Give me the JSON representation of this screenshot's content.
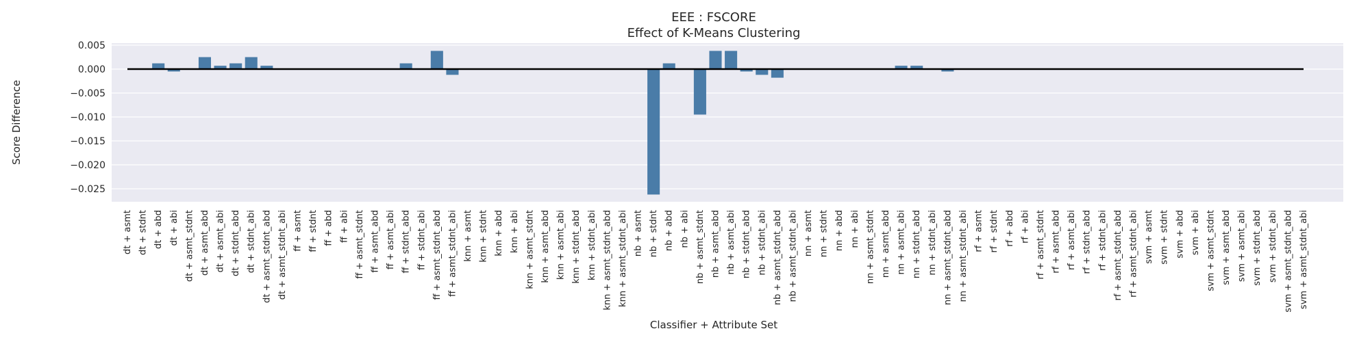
{
  "chart_data": {
    "type": "bar",
    "title": "EEE : FSCORE",
    "subtitle": "Effect of K-Means Clustering",
    "xlabel": "Classifier + Attribute Set",
    "ylabel": "Score Difference",
    "ylim": [
      -0.028,
      0.0055
    ],
    "yticks": [
      0.005,
      0.0,
      -0.005,
      -0.01,
      -0.015,
      -0.02,
      -0.025
    ],
    "ytick_labels": [
      "0.005",
      "0.000",
      "−0.005",
      "−0.010",
      "−0.015",
      "−0.020",
      "−0.025"
    ],
    "grid": true,
    "baseline": 0,
    "colors": {
      "bar": "#4a7ca8",
      "background": "#eaeaf2",
      "grid": "#ffffff",
      "baseline": "#000000"
    },
    "categories": [
      "dt + asmt",
      "dt + stdnt",
      "dt + abd",
      "dt + abi",
      "dt + asmt_stdnt",
      "dt + asmt_abd",
      "dt + asmt_abi",
      "dt + stdnt_abd",
      "dt + stdnt_abi",
      "dt + asmt_stdnt_abd",
      "dt + asmt_stdnt_abi",
      "ff + asmt",
      "ff + stdnt",
      "ff + abd",
      "ff + abi",
      "ff + asmt_stdnt",
      "ff + asmt_abd",
      "ff + asmt_abi",
      "ff + stdnt_abd",
      "ff + stdnt_abi",
      "ff + asmt_stdnt_abd",
      "ff + asmt_stdnt_abi",
      "knn + asmt",
      "knn + stdnt",
      "knn + abd",
      "knn + abi",
      "knn + asmt_stdnt",
      "knn + asmt_abd",
      "knn + asmt_abi",
      "knn + stdnt_abd",
      "knn + stdnt_abi",
      "knn + asmt_stdnt_abd",
      "knn + asmt_stdnt_abi",
      "nb + asmt",
      "nb + stdnt",
      "nb + abd",
      "nb + abi",
      "nb + asmt_stdnt",
      "nb + asmt_abd",
      "nb + asmt_abi",
      "nb + stdnt_abd",
      "nb + stdnt_abi",
      "nb + asmt_stdnt_abd",
      "nb + asmt_stdnt_abi",
      "nn + asmt",
      "nn + stdnt",
      "nn + abd",
      "nn + abi",
      "nn + asmt_stdnt",
      "nn + asmt_abd",
      "nn + asmt_abi",
      "nn + stdnt_abd",
      "nn + stdnt_abi",
      "nn + asmt_stdnt_abd",
      "nn + asmt_stdnt_abi",
      "rf + asmt",
      "rf + stdnt",
      "rf + abd",
      "rf + abi",
      "rf + asmt_stdnt",
      "rf + asmt_abd",
      "rf + asmt_abi",
      "rf + stdnt_abd",
      "rf + stdnt_abi",
      "rf + asmt_stdnt_abd",
      "rf + asmt_stdnt_abi",
      "svm + asmt",
      "svm + stdnt",
      "svm + abd",
      "svm + abi",
      "svm + asmt_stdnt",
      "svm + asmt_abd",
      "svm + asmt_abi",
      "svm + stdnt_abd",
      "svm + stdnt_abi",
      "svm + asmt_stdnt_abd",
      "svm + asmt_stdnt_abi"
    ],
    "values": [
      0,
      0,
      0.0012,
      -0.0005,
      0,
      0.0025,
      0.0007,
      0.0012,
      0.0025,
      0.0007,
      0,
      0,
      0,
      0,
      0,
      0,
      0,
      0,
      0.0012,
      0,
      0.0038,
      -0.0012,
      0,
      0,
      0,
      0,
      0,
      0,
      0,
      0,
      0,
      0,
      0,
      0,
      -0.0262,
      0.0012,
      0,
      -0.0095,
      0.0038,
      0.0038,
      -0.0005,
      -0.0012,
      -0.0018,
      0,
      0,
      0,
      0,
      0,
      0,
      0,
      0.0007,
      0.0007,
      0,
      -0.0005,
      0,
      0,
      0,
      0,
      0,
      0,
      0,
      0,
      0,
      0,
      0,
      0,
      0,
      0,
      0,
      0,
      0,
      0,
      0,
      0,
      0,
      0,
      0
    ]
  }
}
